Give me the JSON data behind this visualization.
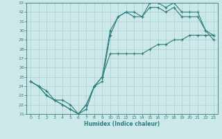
{
  "xlabel": "Humidex (Indice chaleur)",
  "xlim": [
    -0.5,
    23.5
  ],
  "ylim": [
    21,
    33
  ],
  "xticks": [
    0,
    1,
    2,
    3,
    4,
    5,
    6,
    7,
    8,
    9,
    10,
    11,
    12,
    13,
    14,
    15,
    16,
    17,
    18,
    19,
    20,
    21,
    22,
    23
  ],
  "yticks": [
    21,
    22,
    23,
    24,
    25,
    26,
    27,
    28,
    29,
    30,
    31,
    32,
    33
  ],
  "bg_color": "#cce8e8",
  "line_color": "#2d7d7d",
  "grid_color": "#aacfcf",
  "line1_x": [
    0,
    1,
    2,
    3,
    4,
    5,
    6,
    7,
    8,
    9,
    10,
    11,
    12,
    13,
    14,
    15,
    16,
    17,
    18,
    19,
    20,
    21,
    22,
    23
  ],
  "line1_y": [
    24.5,
    24.0,
    23.5,
    22.5,
    22.5,
    22.0,
    21.0,
    21.5,
    24.0,
    24.5,
    29.5,
    31.5,
    32.0,
    32.0,
    31.5,
    33.0,
    33.0,
    32.5,
    33.0,
    32.0,
    32.0,
    32.0,
    30.0,
    29.5
  ],
  "line2_x": [
    0,
    1,
    2,
    3,
    4,
    5,
    6,
    7,
    8,
    9,
    10,
    11,
    12,
    13,
    14,
    15,
    16,
    17,
    18,
    19,
    20,
    21,
    22,
    23
  ],
  "line2_y": [
    24.5,
    24.0,
    23.0,
    22.5,
    22.0,
    21.5,
    21.0,
    22.0,
    24.0,
    25.0,
    27.5,
    27.5,
    27.5,
    27.5,
    27.5,
    28.0,
    28.5,
    28.5,
    29.0,
    29.0,
    29.5,
    29.5,
    29.5,
    29.5
  ],
  "line3_x": [
    0,
    1,
    2,
    3,
    4,
    5,
    6,
    7,
    8,
    9,
    10,
    11,
    12,
    13,
    14,
    15,
    16,
    17,
    18,
    19,
    20,
    21,
    22,
    23
  ],
  "line3_y": [
    24.5,
    24.0,
    23.0,
    22.5,
    22.0,
    21.5,
    21.0,
    22.0,
    24.0,
    25.0,
    30.0,
    31.5,
    32.0,
    31.5,
    31.5,
    32.5,
    32.5,
    32.0,
    32.5,
    31.5,
    31.5,
    31.5,
    30.0,
    29.0
  ]
}
